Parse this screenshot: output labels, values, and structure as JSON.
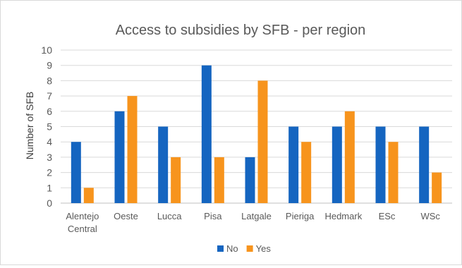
{
  "chart_data": {
    "type": "bar",
    "title": "Access to subsidies by SFB - per region",
    "xlabel": "",
    "ylabel": "Number of SFB",
    "ylim": [
      0,
      10
    ],
    "yticks": [
      0,
      1,
      2,
      3,
      4,
      5,
      6,
      7,
      8,
      9,
      10
    ],
    "grid": true,
    "legend_position": "bottom",
    "categories": [
      [
        "Alentejo",
        "Central"
      ],
      [
        "Oeste"
      ],
      [
        "Lucca"
      ],
      [
        "Pisa"
      ],
      [
        "Latgale"
      ],
      [
        "Pieriga"
      ],
      [
        "Hedmark"
      ],
      [
        "ESc"
      ],
      [
        "WSc"
      ]
    ],
    "series": [
      {
        "name": "No",
        "color": "#1565c0",
        "values": [
          4,
          6,
          5,
          9,
          3,
          5,
          5,
          5,
          5
        ]
      },
      {
        "name": "Yes",
        "color": "#f7941d",
        "values": [
          1,
          7,
          3,
          3,
          8,
          4,
          6,
          4,
          2
        ]
      }
    ]
  }
}
